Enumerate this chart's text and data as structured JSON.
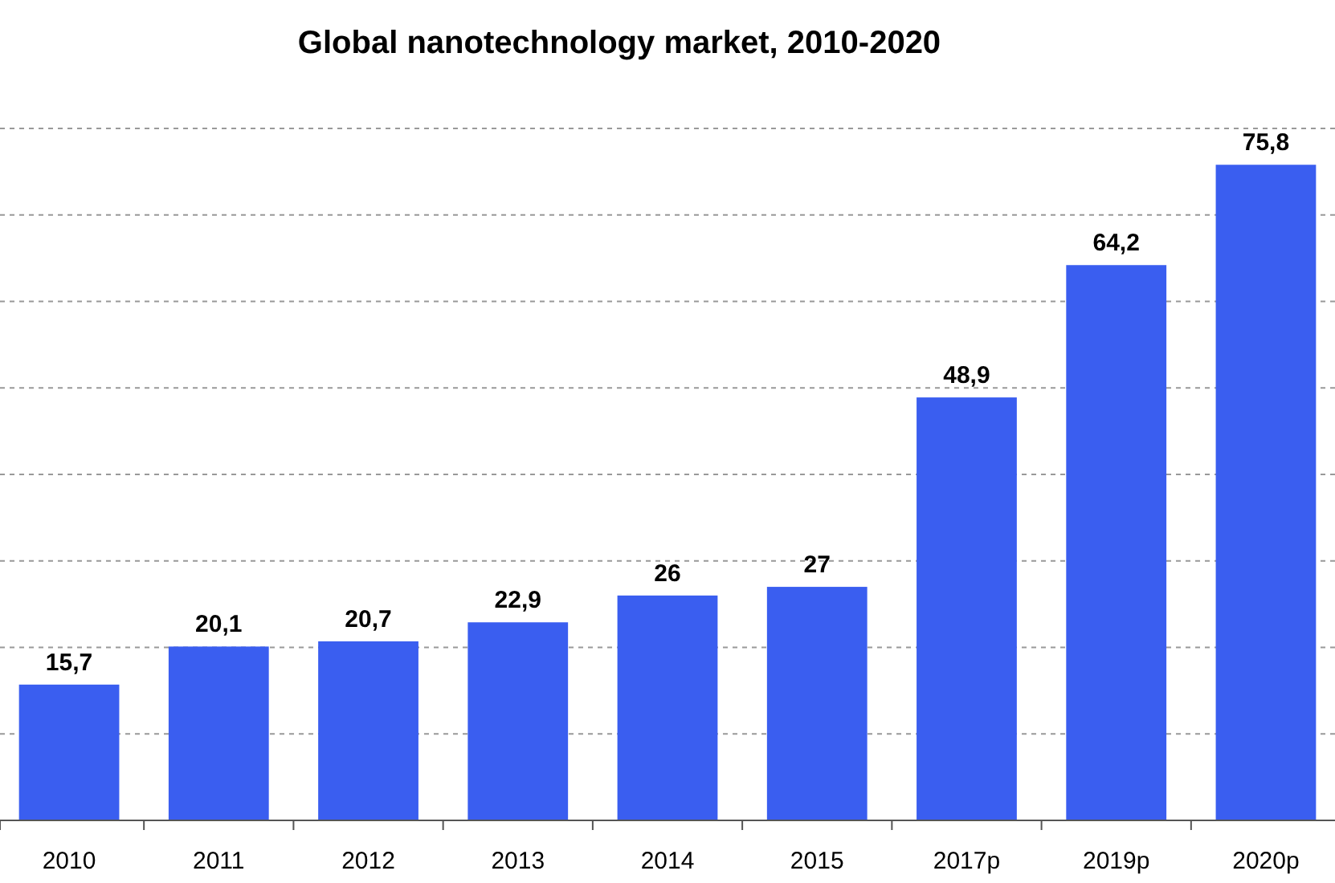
{
  "chart_data": {
    "type": "bar",
    "title": "Global nanotechnology market, 2010-2020",
    "categories": [
      "2010",
      "2011",
      "2012",
      "2013",
      "2014",
      "2015",
      "2017p",
      "2019p",
      "2020p"
    ],
    "values": [
      15.7,
      20.1,
      20.7,
      22.9,
      26,
      27,
      48.9,
      64.2,
      75.8
    ],
    "value_labels": [
      "15,7",
      "20,1",
      "20,7",
      "22,9",
      "26",
      "27",
      "48,9",
      "64,2",
      "75,8"
    ],
    "color": "#3a5ef0",
    "ylim": [
      0,
      80
    ],
    "yticks": [
      {
        "value": 0,
        "label": null
      },
      {
        "value": 10,
        "label": null
      },
      {
        "value": 20,
        "label": null
      },
      {
        "value": 30,
        "label": null
      },
      {
        "value": 40,
        "label": null
      },
      {
        "value": 50,
        "label": null
      },
      {
        "value": 60,
        "label": null
      },
      {
        "value": 70,
        "label": null
      },
      {
        "value": 80,
        "label": null
      }
    ],
    "grid": "y",
    "tick_labels": "x"
  }
}
